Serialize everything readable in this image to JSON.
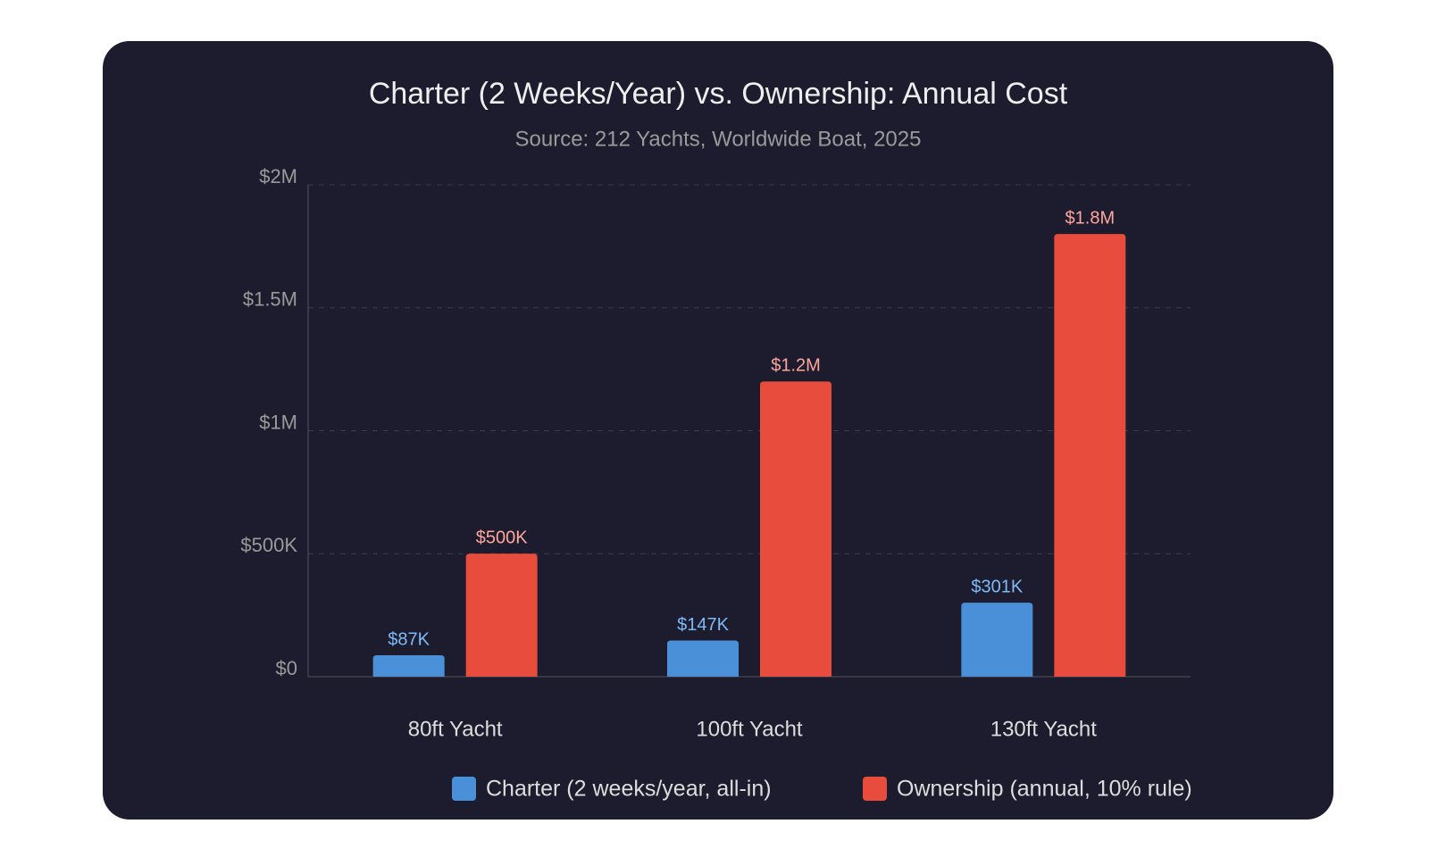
{
  "chart_data": {
    "type": "bar",
    "title": "Charter (2 Weeks/Year) vs. Ownership: Annual Cost",
    "subtitle": "Source: 212 Yachts, Worldwide Boat, 2025",
    "categories": [
      "80ft Yacht",
      "100ft Yacht",
      "130ft Yacht"
    ],
    "series": [
      {
        "name": "Charter (2 weeks/year, all-in)",
        "color": "#4a90d9",
        "label_color": "#7fbaf7",
        "values": [
          87000,
          147000,
          301000
        ],
        "value_labels": [
          "$87K",
          "$147K",
          "$301K"
        ]
      },
      {
        "name": "Ownership (annual, 10% rule)",
        "color": "#e74c3c",
        "label_color": "#ffa69c",
        "values": [
          500000,
          1200000,
          1800000
        ],
        "value_labels": [
          "$500K",
          "$1.2M",
          "$1.8M"
        ]
      }
    ],
    "ylim": [
      0,
      2000000
    ],
    "yticks": [
      {
        "value": 0,
        "label": "$0"
      },
      {
        "value": 500000,
        "label": "$500K"
      },
      {
        "value": 1000000,
        "label": "$1M"
      },
      {
        "value": 1500000,
        "label": "$1.5M"
      },
      {
        "value": 2000000,
        "label": "$2M"
      }
    ],
    "grid": true
  }
}
